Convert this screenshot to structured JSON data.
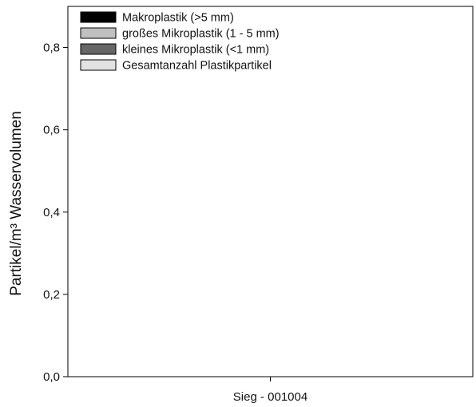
{
  "chart_data": {
    "type": "bar",
    "categories": [
      "Sieg - 001004"
    ],
    "series": [
      {
        "name": "Makroplastik (>5 mm)",
        "color": "#000000",
        "values": [
          0
        ]
      },
      {
        "name": "großes Mikroplastik (1 - 5 mm)",
        "color": "#c0c0c0",
        "values": [
          0
        ]
      },
      {
        "name": "kleines Mikroplastik (<1 mm)",
        "color": "#666666",
        "values": [
          0
        ]
      },
      {
        "name": "Gesamtanzahl Plastikpartikel",
        "color": "#e2e2e2",
        "values": [
          0
        ]
      }
    ],
    "ylabel": "Partikel/m³ Wasservolumen",
    "xlabel": "",
    "ylim": [
      0,
      0.9
    ],
    "yticks": [
      "0,0",
      "0,2",
      "0,4",
      "0,6",
      "0,8"
    ],
    "ytick_values": [
      0,
      0.2,
      0.4,
      0.6,
      0.8
    ],
    "grid": false,
    "legend_position": "top-left"
  }
}
